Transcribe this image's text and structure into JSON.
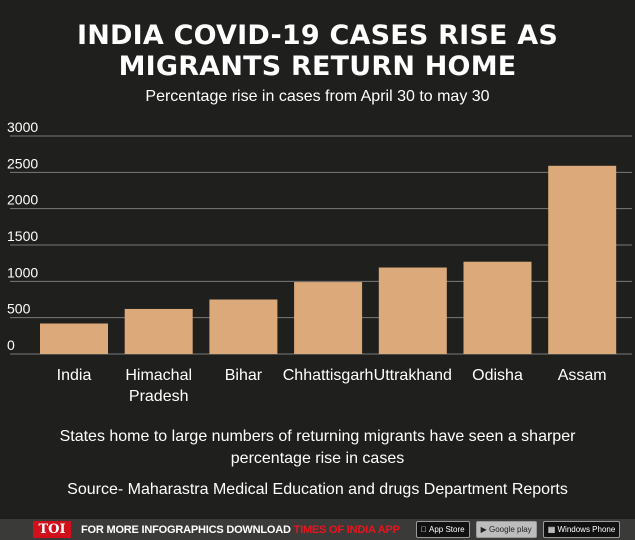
{
  "header": {
    "title_line1": "INDIA COVID-19 CASES RISE AS",
    "title_line2": "MIGRANTS RETURN HOME",
    "subtitle": "Percentage rise in cases from April 30 to may 30"
  },
  "chart_data": {
    "type": "bar",
    "categories": [
      "India",
      "Himachal Pradesh",
      "Bihar",
      "Chhattisgarh",
      "Uttrakhand",
      "Odisha",
      "Assam"
    ],
    "category_label_lines": [
      [
        "India"
      ],
      [
        "Himachal",
        "Pradesh"
      ],
      [
        "Bihar"
      ],
      [
        "Chhattisgarh"
      ],
      [
        "Uttrakhand"
      ],
      [
        "Odisha"
      ],
      [
        "Assam"
      ]
    ],
    "values": [
      420,
      620,
      750,
      990,
      1190,
      1270,
      2590
    ],
    "yticks": [
      0,
      500,
      1000,
      1500,
      2000,
      2500,
      3000
    ],
    "ylim": [
      0,
      3000
    ],
    "bar_color": "#dca97a",
    "grid": true,
    "legend": "none"
  },
  "captions": {
    "note": "States home to large numbers of returning migrants have seen a sharper percentage rise in cases",
    "source": "Source- Maharastra Medical Education and drugs Department Reports"
  },
  "footer": {
    "logo": "TOI",
    "promo_text": "FOR MORE  INFOGRAPHICS DOWNLOAD ",
    "brand_text": "TIMES OF INDIA APP",
    "app_store": "App Store",
    "google_play": "Google play",
    "windows_phone": "Windows Phone"
  },
  "colors": {
    "background": "#1f1f1d",
    "gridline": "#7a7a78",
    "brand_red": "#d0101a"
  }
}
